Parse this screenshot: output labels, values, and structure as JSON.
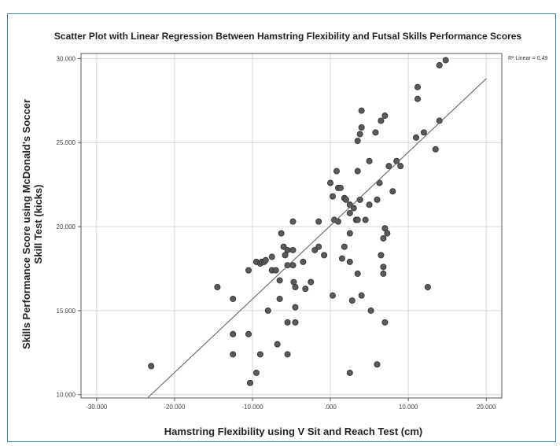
{
  "chart_data": {
    "type": "scatter",
    "title": "Scatter Plot with Linear Regression Between Hamstring Flexibility and Futsal Skills Performance Scores",
    "xlabel": "Hamstring Flexibility using V Sit and Reach Test (cm)",
    "ylabel": [
      "Skills Performance Score using McDonald's Soccer",
      "Skill Test (kicks)"
    ],
    "xlim": [
      -32,
      22
    ],
    "ylim": [
      9.8,
      30.3
    ],
    "x_ticks": [
      -30,
      -20,
      -10,
      0,
      10,
      20
    ],
    "x_tick_labels": [
      "-30.000",
      "-20.000",
      "-10.000",
      ".000",
      "10.000",
      "20.000"
    ],
    "y_ticks": [
      10,
      15,
      20,
      25,
      30
    ],
    "y_tick_labels": [
      "10.000",
      "15.000",
      "20.000",
      "25.000",
      "30.000"
    ],
    "grid": true,
    "legend": {
      "placement": "top-right",
      "text": "R² Linear = 0.49"
    },
    "regression_line": {
      "x1": -25.3,
      "y1": 9.0,
      "x2": 20,
      "y2": 28.8
    },
    "points": [
      {
        "x": -23,
        "y": 11.7
      },
      {
        "x": -14.5,
        "y": 16.4
      },
      {
        "x": -12.5,
        "y": 15.7
      },
      {
        "x": -12.5,
        "y": 13.6
      },
      {
        "x": -12.5,
        "y": 12.4
      },
      {
        "x": -10.5,
        "y": 17.4
      },
      {
        "x": -10.5,
        "y": 13.6
      },
      {
        "x": -10.3,
        "y": 10.7
      },
      {
        "x": -9.5,
        "y": 17.9
      },
      {
        "x": -9,
        "y": 17.8
      },
      {
        "x": -8.8,
        "y": 17.9
      },
      {
        "x": -8.5,
        "y": 17.9
      },
      {
        "x": -8.3,
        "y": 18.0
      },
      {
        "x": -9.5,
        "y": 11.3
      },
      {
        "x": -9,
        "y": 12.4
      },
      {
        "x": -8,
        "y": 15.0
      },
      {
        "x": -7.5,
        "y": 18.2
      },
      {
        "x": -7.5,
        "y": 17.4
      },
      {
        "x": -7,
        "y": 17.4
      },
      {
        "x": -6.5,
        "y": 15.7
      },
      {
        "x": -6.5,
        "y": 16.8
      },
      {
        "x": -6.3,
        "y": 19.6
      },
      {
        "x": -6,
        "y": 18.8
      },
      {
        "x": -5.8,
        "y": 18.3
      },
      {
        "x": -5.5,
        "y": 17.7
      },
      {
        "x": -5.5,
        "y": 18.6
      },
      {
        "x": -5.5,
        "y": 14.3
      },
      {
        "x": -5.5,
        "y": 12.4
      },
      {
        "x": -6.8,
        "y": 13.0
      },
      {
        "x": -4.8,
        "y": 20.3
      },
      {
        "x": -4.8,
        "y": 18.6
      },
      {
        "x": -4.8,
        "y": 17.7
      },
      {
        "x": -4.7,
        "y": 16.7
      },
      {
        "x": -4.5,
        "y": 16.4
      },
      {
        "x": -4.5,
        "y": 15.2
      },
      {
        "x": -4.5,
        "y": 14.3
      },
      {
        "x": -3.5,
        "y": 17.9
      },
      {
        "x": -3.2,
        "y": 16.3
      },
      {
        "x": -2.5,
        "y": 16.7
      },
      {
        "x": -2,
        "y": 18.6
      },
      {
        "x": -1.5,
        "y": 18.8
      },
      {
        "x": -1.5,
        "y": 20.3
      },
      {
        "x": -0.8,
        "y": 18.3
      },
      {
        "x": 0,
        "y": 22.6
      },
      {
        "x": 0.3,
        "y": 21.8
      },
      {
        "x": 0.3,
        "y": 15.9
      },
      {
        "x": 0.5,
        "y": 20.4
      },
      {
        "x": 0.8,
        "y": 23.3
      },
      {
        "x": 1,
        "y": 22.3
      },
      {
        "x": 1,
        "y": 20.3
      },
      {
        "x": 1.3,
        "y": 22.3
      },
      {
        "x": 1.5,
        "y": 18.1
      },
      {
        "x": 1.8,
        "y": 18.8
      },
      {
        "x": 1.8,
        "y": 21.7
      },
      {
        "x": 2,
        "y": 21.6
      },
      {
        "x": 2.5,
        "y": 21.3
      },
      {
        "x": 2.5,
        "y": 20.8
      },
      {
        "x": 2.5,
        "y": 19.6
      },
      {
        "x": 2.5,
        "y": 17.9
      },
      {
        "x": 2.5,
        "y": 11.3
      },
      {
        "x": 2.8,
        "y": 15.6
      },
      {
        "x": 3,
        "y": 21.1
      },
      {
        "x": 3.3,
        "y": 20.4
      },
      {
        "x": 3.5,
        "y": 25.1
      },
      {
        "x": 3.5,
        "y": 23.3
      },
      {
        "x": 3.5,
        "y": 20.4
      },
      {
        "x": 3.5,
        "y": 17.2
      },
      {
        "x": 3.8,
        "y": 25.5
      },
      {
        "x": 3.8,
        "y": 21.6
      },
      {
        "x": 4,
        "y": 26.9
      },
      {
        "x": 4,
        "y": 25.9
      },
      {
        "x": 4,
        "y": 15.9
      },
      {
        "x": 4.5,
        "y": 20.4
      },
      {
        "x": 5,
        "y": 23.9
      },
      {
        "x": 5,
        "y": 21.3
      },
      {
        "x": 5.2,
        "y": 15.0
      },
      {
        "x": 5.8,
        "y": 25.6
      },
      {
        "x": 6,
        "y": 21.6
      },
      {
        "x": 6,
        "y": 11.8
      },
      {
        "x": 6.3,
        "y": 22.6
      },
      {
        "x": 6.5,
        "y": 26.3
      },
      {
        "x": 6.5,
        "y": 18.3
      },
      {
        "x": 6.8,
        "y": 17.6
      },
      {
        "x": 6.8,
        "y": 17.2
      },
      {
        "x": 6.8,
        "y": 19.3
      },
      {
        "x": 7,
        "y": 19.9
      },
      {
        "x": 7,
        "y": 14.3
      },
      {
        "x": 7,
        "y": 26.6
      },
      {
        "x": 7.3,
        "y": 19.6
      },
      {
        "x": 7.5,
        "y": 23.6
      },
      {
        "x": 8,
        "y": 22.1
      },
      {
        "x": 8.5,
        "y": 23.9
      },
      {
        "x": 9,
        "y": 23.6
      },
      {
        "x": 11,
        "y": 25.3
      },
      {
        "x": 11.2,
        "y": 27.6
      },
      {
        "x": 11.2,
        "y": 28.3
      },
      {
        "x": 12,
        "y": 25.6
      },
      {
        "x": 12.5,
        "y": 16.4
      },
      {
        "x": 13.5,
        "y": 24.6
      },
      {
        "x": 14,
        "y": 26.3
      },
      {
        "x": 14,
        "y": 29.6
      },
      {
        "x": 14.8,
        "y": 29.9
      }
    ]
  }
}
